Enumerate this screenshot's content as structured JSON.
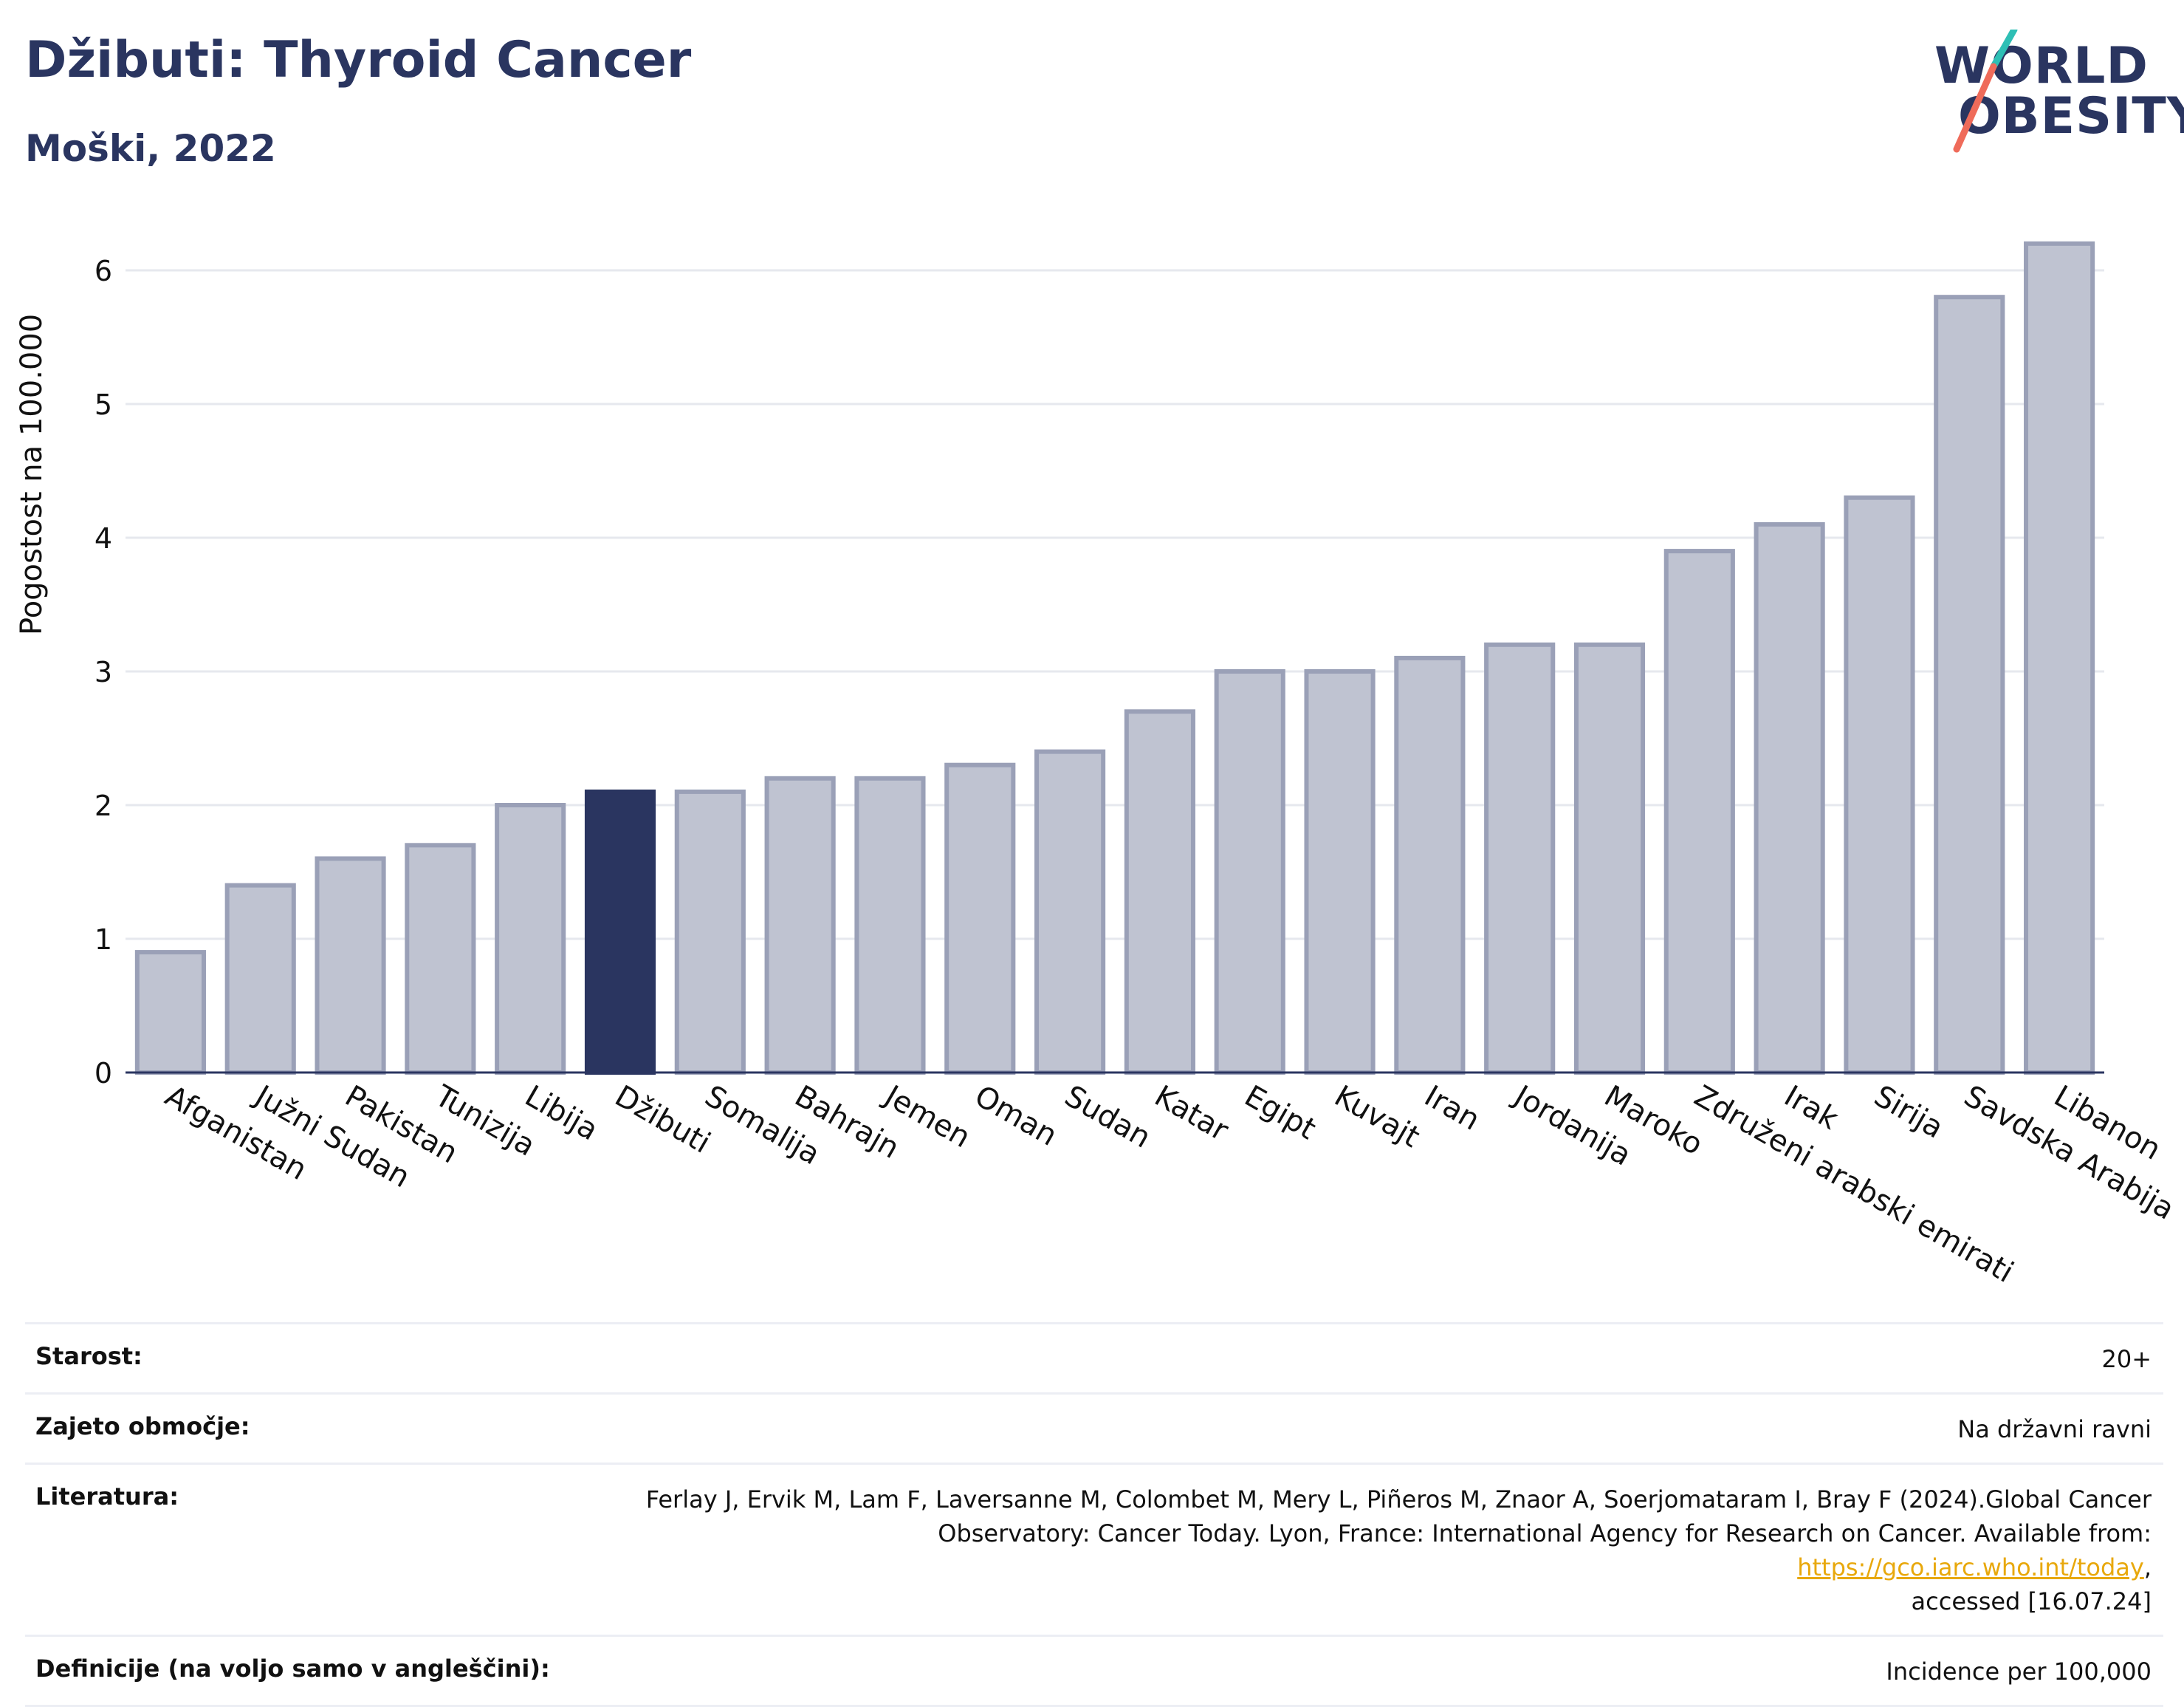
{
  "header": {
    "title": "Džibuti: Thyroid Cancer",
    "subtitle": "Moški, 2022"
  },
  "logo": {
    "line1": "WORLD",
    "line2": "OBESITY"
  },
  "colors": {
    "highlight": "#2a3560",
    "bar": "#bfc3d1",
    "bar_stroke": "#9aa0b7",
    "logo_teal": "#2ebfb5",
    "logo_coral": "#ef6b5a"
  },
  "chart_data": {
    "type": "bar",
    "ylabel": "Pogostost na 100.000",
    "ylim": [
      0,
      6.5
    ],
    "yticks": [
      0,
      1,
      2,
      3,
      4,
      5,
      6
    ],
    "grid": true,
    "highlight_category": "Džibuti",
    "categories": [
      "Afganistan",
      "Južni Sudan",
      "Pakistan",
      "Tunizija",
      "Libija",
      "Džibuti",
      "Somalija",
      "Bahrajn",
      "Jemen",
      "Oman",
      "Sudan",
      "Katar",
      "Egipt",
      "Kuvajt",
      "Iran",
      "Jordanija",
      "Maroko",
      "Združeni arabski emirati",
      "Irak",
      "Sirija",
      "Savdska Arabija",
      "Libanon"
    ],
    "values": [
      0.9,
      1.4,
      1.6,
      1.7,
      2.0,
      2.1,
      2.1,
      2.2,
      2.2,
      2.3,
      2.4,
      2.7,
      3.0,
      3.0,
      3.1,
      3.2,
      3.2,
      3.9,
      4.1,
      4.3,
      5.8,
      6.2
    ]
  },
  "info": {
    "age_label": "Starost:",
    "age_value": "20+",
    "coverage_label": "Zajeto območje:",
    "coverage_value": "Na državni ravni",
    "lit_label": "Literatura:",
    "lit_line1": "Ferlay J, Ervik M, Lam F, Laversanne M, Colombet M, Mery L, Piñeros M, Znaor A, Soerjomataram I, Bray F (2024).Global Cancer",
    "lit_line2": "Observatory: Cancer Today. Lyon, France: International Agency for Research on Cancer. Available from: ",
    "lit_link": "https://gco.iarc.who.int/today",
    "lit_line3": "accessed [16.07.24]",
    "def_label": "Definicije (na voljo samo v angleščini):",
    "def_value": "Incidence per 100,000"
  }
}
